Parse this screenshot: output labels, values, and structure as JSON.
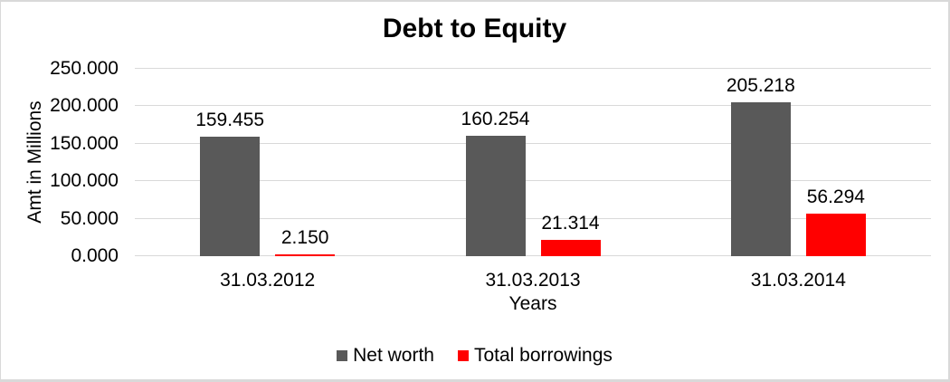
{
  "chart_data": {
    "type": "bar",
    "title": "Debt to Equity",
    "xlabel": "Years",
    "ylabel": "Amt  in Millions",
    "categories": [
      "31.03.2012",
      "31.03.2013",
      "31.03.2014"
    ],
    "series": [
      {
        "name": "Net worth",
        "color": "#595959",
        "values": [
          159.455,
          160.254,
          205.218
        ],
        "labels": [
          "159.455",
          "160.254",
          "205.218"
        ]
      },
      {
        "name": "Total borrowings",
        "color": "#ff0000",
        "values": [
          2.15,
          21.314,
          56.294
        ],
        "labels": [
          "2.150",
          "21.314",
          "56.294"
        ]
      }
    ],
    "ylim": [
      0,
      250
    ],
    "ytick_step": 50,
    "ytick_labels": [
      "0.000",
      "50.000",
      "100.000",
      "150.000",
      "200.000",
      "250.000"
    ],
    "grid": true,
    "legend_position": "bottom"
  }
}
